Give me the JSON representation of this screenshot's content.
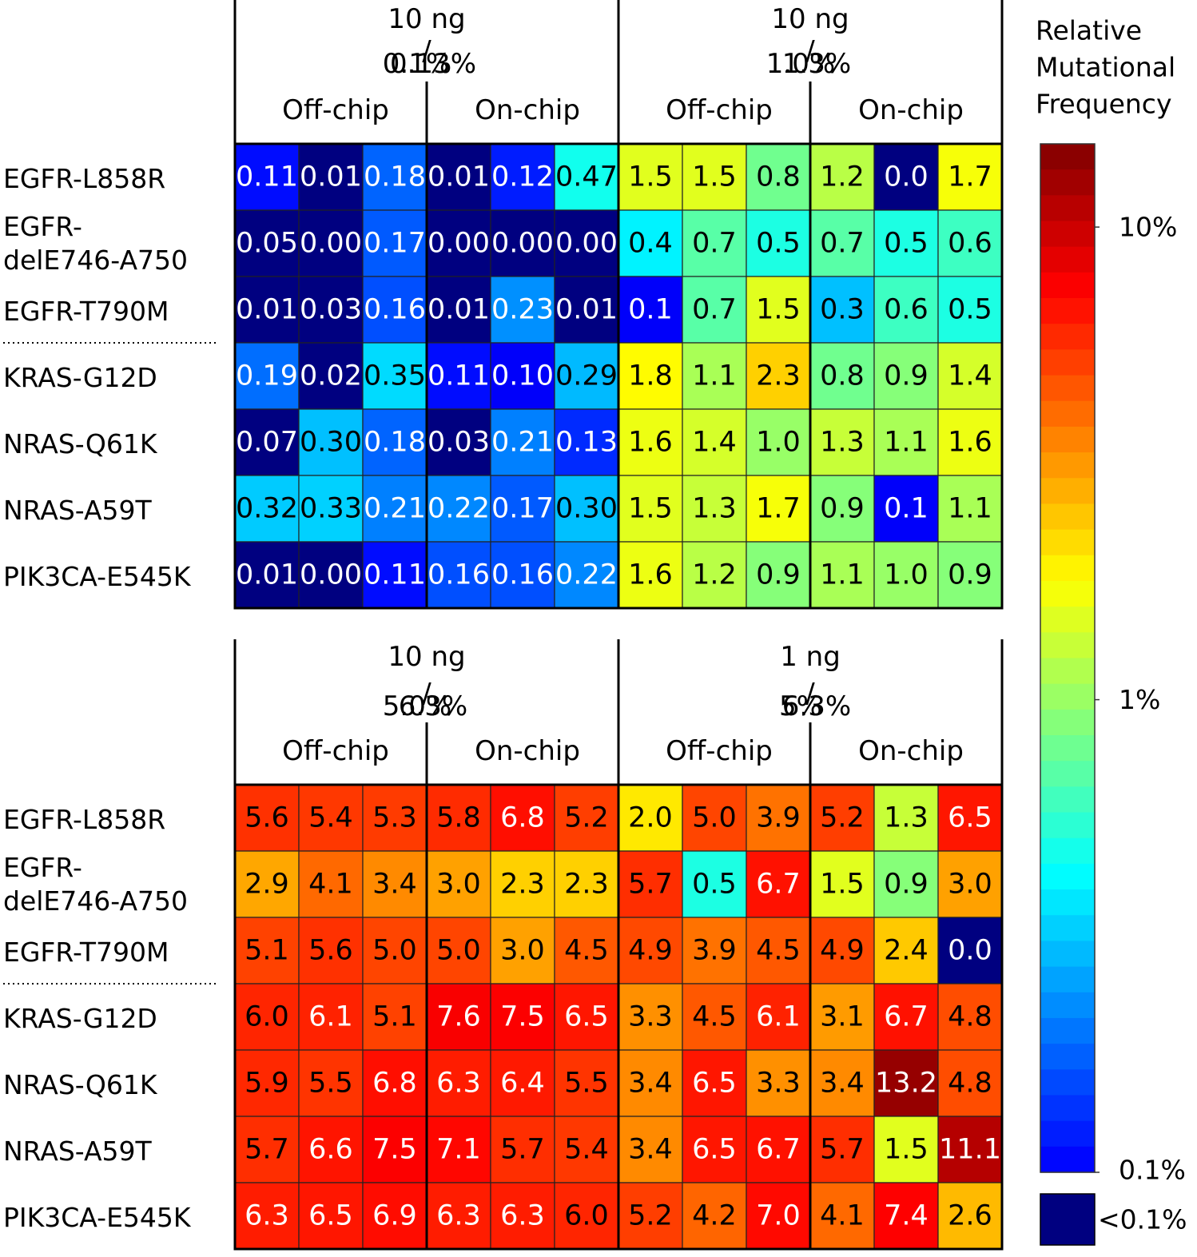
{
  "chart_data": [
    {
      "type": "heatmap",
      "rows": [
        "EGFR-L858R",
        "EGFR-delE746-A750",
        "EGFR-T790M",
        "KRAS-G12D",
        "NRAS-Q61K",
        "NRAS-A59T",
        "PIK3CA-E545K"
      ],
      "groups": [
        {
          "amount": "10 ng",
          "pct_left": "0.1%",
          "pct_right": "0.13%",
          "subgroups": [
            "Off-chip",
            "On-chip"
          ],
          "values": [
            [
              "0.11",
              "0.01",
              "0.18",
              "0.01",
              "0.12",
              "0.47"
            ],
            [
              "0.05",
              "0.00",
              "0.17",
              "0.00",
              "0.00",
              "0.00"
            ],
            [
              "0.01",
              "0.03",
              "0.16",
              "0.01",
              "0.23",
              "0.01"
            ],
            [
              "0.19",
              "0.02",
              "0.35",
              "0.11",
              "0.10",
              "0.29"
            ],
            [
              "0.07",
              "0.30",
              "0.18",
              "0.03",
              "0.21",
              "0.13"
            ],
            [
              "0.32",
              "0.33",
              "0.21",
              "0.22",
              "0.17",
              "0.30"
            ],
            [
              "0.01",
              "0.00",
              "0.11",
              "0.16",
              "0.16",
              "0.22"
            ]
          ]
        },
        {
          "amount": "10 ng",
          "pct_left": "1.0%",
          "pct_right": "1.3%",
          "subgroups": [
            "Off-chip",
            "On-chip"
          ],
          "values": [
            [
              "1.5",
              "1.5",
              "0.8",
              "1.2",
              "0.0",
              "1.7"
            ],
            [
              "0.4",
              "0.7",
              "0.5",
              "0.7",
              "0.5",
              "0.6"
            ],
            [
              "0.1",
              "0.7",
              "1.5",
              "0.3",
              "0.6",
              "0.5"
            ],
            [
              "1.8",
              "1.1",
              "2.3",
              "0.8",
              "0.9",
              "1.4"
            ],
            [
              "1.6",
              "1.4",
              "1.0",
              "1.3",
              "1.1",
              "1.6"
            ],
            [
              "1.5",
              "1.3",
              "1.7",
              "0.9",
              "0.1",
              "1.1"
            ],
            [
              "1.6",
              "1.2",
              "0.9",
              "1.1",
              "1.0",
              "0.9"
            ]
          ]
        }
      ]
    },
    {
      "type": "heatmap",
      "rows": [
        "EGFR-L858R",
        "EGFR-delE746-A750",
        "EGFR-T790M",
        "KRAS-G12D",
        "NRAS-Q61K",
        "NRAS-A59T",
        "PIK3CA-E545K"
      ],
      "groups": [
        {
          "amount": "10 ng",
          "pct_left": "5.0%",
          "pct_right": "6.3%",
          "subgroups": [
            "Off-chip",
            "On-chip"
          ],
          "values": [
            [
              "5.6",
              "5.4",
              "5.3",
              "5.8",
              "6.8",
              "5.2"
            ],
            [
              "2.9",
              "4.1",
              "3.4",
              "3.0",
              "2.3",
              "2.3"
            ],
            [
              "5.1",
              "5.6",
              "5.0",
              "5.0",
              "3.0",
              "4.5"
            ],
            [
              "6.0",
              "6.1",
              "5.1",
              "7.6",
              "7.5",
              "6.5"
            ],
            [
              "5.9",
              "5.5",
              "6.8",
              "6.3",
              "6.4",
              "5.5"
            ],
            [
              "5.7",
              "6.6",
              "7.5",
              "7.1",
              "5.7",
              "5.4"
            ],
            [
              "6.3",
              "6.5",
              "6.9",
              "6.3",
              "6.3",
              "6.0"
            ]
          ]
        },
        {
          "amount": "1 ng",
          "pct_left": "5%",
          "pct_right": "6.3%",
          "subgroups": [
            "Off-chip",
            "On-chip"
          ],
          "values": [
            [
              "2.0",
              "5.0",
              "3.9",
              "5.2",
              "1.3",
              "6.5"
            ],
            [
              "5.7",
              "0.5",
              "6.7",
              "1.5",
              "0.9",
              "3.0"
            ],
            [
              "4.9",
              "3.9",
              "4.5",
              "4.9",
              "2.4",
              "0.0"
            ],
            [
              "3.3",
              "4.5",
              "6.1",
              "3.1",
              "6.7",
              "4.8"
            ],
            [
              "3.4",
              "6.5",
              "3.3",
              "3.4",
              "13.2",
              "4.8"
            ],
            [
              "3.4",
              "6.5",
              "6.7",
              "5.7",
              "1.5",
              "11.1"
            ],
            [
              "5.2",
              "4.2",
              "7.0",
              "4.1",
              "7.4",
              "2.6"
            ]
          ]
        }
      ]
    }
  ],
  "colorbar": {
    "title_lines": [
      "Relative",
      "Mutational",
      "Frequency"
    ],
    "scale": "log",
    "range": [
      0.1,
      15
    ],
    "ticks": [
      {
        "value": 10,
        "label": "10%"
      },
      {
        "value": 1,
        "label": "1%"
      },
      {
        "value": 0.1,
        "label": "0.1%"
      }
    ],
    "below_threshold_label": "<0.1%",
    "below_threshold_color": "#000080"
  },
  "row_labels": {
    "EGFR-delE746-A750": [
      "EGFR-",
      "delE746-A750"
    ]
  }
}
